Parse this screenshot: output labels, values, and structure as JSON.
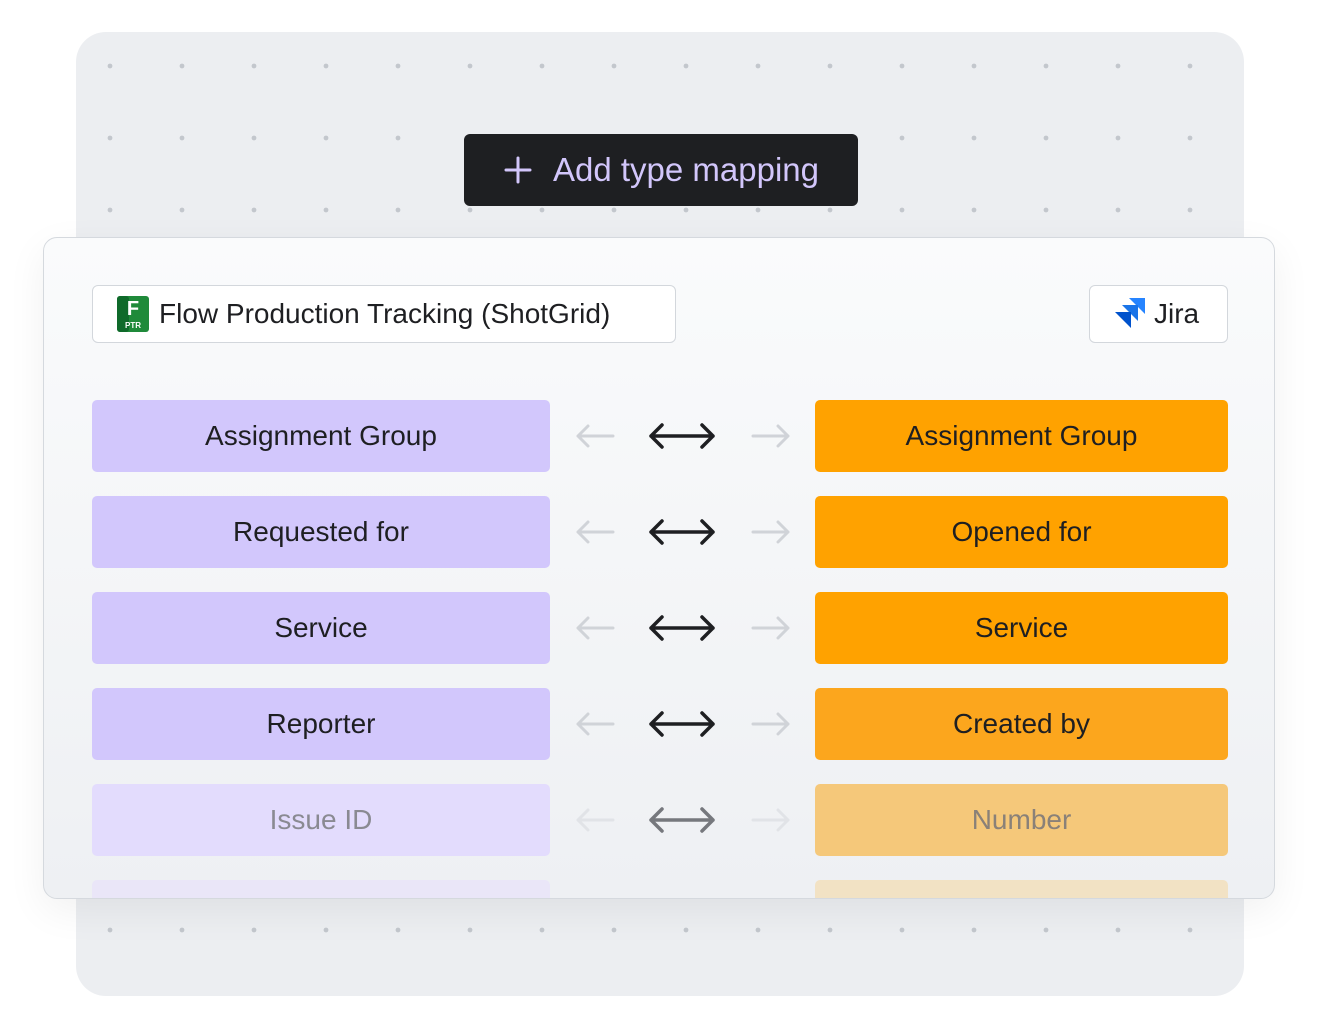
{
  "toolbar": {
    "add_type_mapping_label": "Add type mapping"
  },
  "source_app": {
    "name": "Flow Production Tracking (ShotGrid)",
    "logo_letter": "F",
    "logo_sub": "PTR",
    "logo_icon": "flow-production-tracking-logo-icon"
  },
  "target_app": {
    "name": "Jira",
    "logo_icon": "jira-logo-icon"
  },
  "mappings": [
    {
      "source": "Assignment Group",
      "target": "Assignment Group",
      "direction": "bidirectional"
    },
    {
      "source": "Requested for",
      "target": "Opened for",
      "direction": "bidirectional"
    },
    {
      "source": "Service",
      "target": "Service",
      "direction": "bidirectional"
    },
    {
      "source": "Reporter",
      "target": "Created by",
      "direction": "bidirectional"
    },
    {
      "source": "Issue ID",
      "target": "Number",
      "direction": "bidirectional"
    }
  ],
  "colors": {
    "source_field": "#d2c7fc",
    "target_field": "#ffa200",
    "button_bg": "#1e1f22",
    "button_text": "#d2c6fb"
  }
}
